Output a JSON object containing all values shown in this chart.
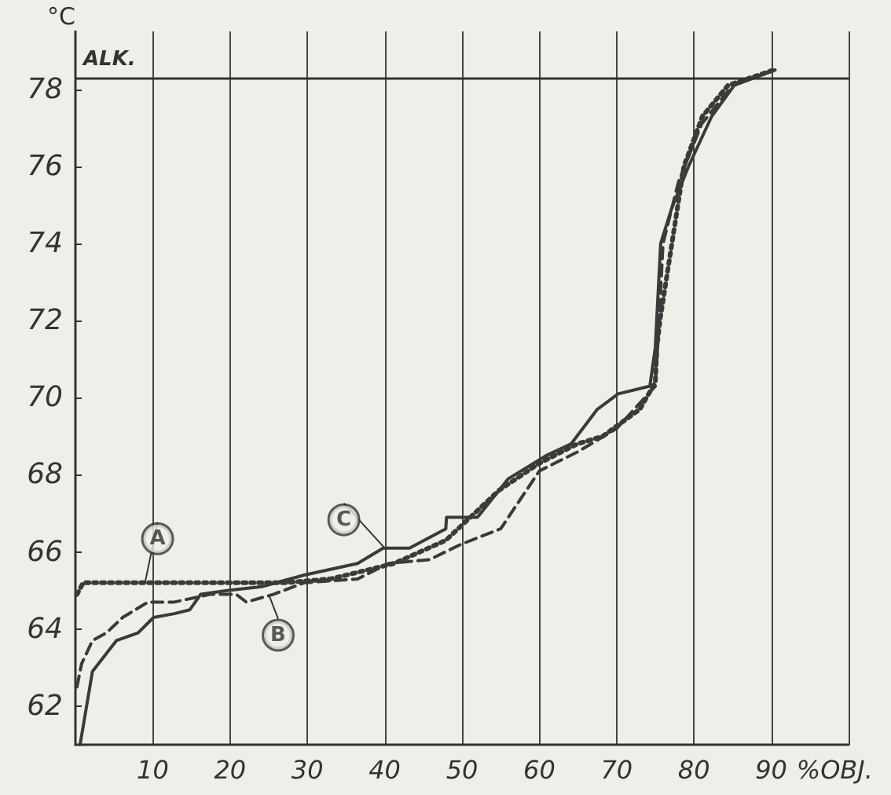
{
  "chart_data": {
    "type": "line",
    "ylabel": "°C",
    "xlabel": "%OBJ.",
    "xlim": [
      0,
      100
    ],
    "ylim": [
      61,
      79.5
    ],
    "xticks": [
      10,
      20,
      30,
      40,
      50,
      60,
      70,
      80,
      90,
      {
        "value": 100,
        "label": null
      }
    ],
    "yticks": [
      62,
      64,
      66,
      68,
      70,
      72,
      74,
      76,
      78
    ],
    "grid": "x",
    "marker": "none",
    "series": [
      {
        "color": "#3a3a3a",
        "line_style": "dotted",
        "x": [
          0.2,
          1,
          10,
          20,
          27,
          33,
          41.2,
          47.9,
          54.8,
          60,
          64.9,
          68.2,
          73,
          75,
          75.2,
          75.6,
          78.7,
          81.1,
          84.4,
          90.3
        ],
        "values": [
          64.9,
          65.2,
          65.2,
          65.2,
          65.2,
          65.3,
          65.7,
          66.3,
          67.6,
          68.3,
          68.8,
          69,
          69.7,
          70.4,
          71.3,
          72,
          76,
          77.3,
          78.1,
          78.5
        ]
      },
      {
        "color": "#3a3a3a",
        "line_style": "dashed",
        "x": [
          0.2,
          0.8,
          2.2,
          4,
          6.1,
          9.4,
          12.8,
          17.4,
          20.8,
          22.1,
          25.6,
          29.6,
          36.5,
          40.5,
          45.8,
          49.9,
          55,
          60,
          65,
          70,
          75,
          75.5,
          76,
          78,
          81,
          85,
          90.3
        ],
        "values": [
          62.5,
          63.1,
          63.7,
          63.9,
          64.3,
          64.7,
          64.7,
          64.9,
          64.9,
          64.7,
          64.9,
          65.2,
          65.3,
          65.7,
          65.8,
          66.2,
          66.6,
          68.1,
          68.6,
          69.2,
          70.3,
          72,
          74,
          75.6,
          77.1,
          78.1,
          78.5
        ]
      },
      {
        "color": "#3a3a3a",
        "line_style": "solid",
        "x": [
          0.6,
          2.2,
          5.3,
          8.1,
          10.1,
          12.8,
          14.8,
          16.2,
          19.6,
          24.1,
          29.6,
          36.5,
          39.8,
          43.2,
          47.9,
          48,
          52,
          56,
          60.9,
          64.1,
          67.5,
          70.2,
          74.3,
          75,
          75.7,
          77.1,
          79.3,
          82.3,
          85.2,
          90.5
        ],
        "values": [
          61,
          62.9,
          63.7,
          63.9,
          64.3,
          64.4,
          64.5,
          64.9,
          65,
          65.1,
          65.4,
          65.7,
          66.1,
          66.1,
          66.6,
          66.9,
          66.9,
          67.9,
          68.5,
          68.8,
          69.7,
          70.1,
          70.3,
          71.3,
          74,
          74.9,
          76,
          77.3,
          78.1,
          78.5
        ]
      }
    ],
    "ref_lines": [
      {
        "axis": "y",
        "value": 78.3,
        "label": "ALK."
      }
    ],
    "annotations": [
      {
        "text": "A",
        "x": 9,
        "y": 65.2
      },
      {
        "text": "B",
        "x": 25,
        "y": 64.9
      },
      {
        "text": "C",
        "x": 40,
        "y": 66.1
      }
    ]
  }
}
